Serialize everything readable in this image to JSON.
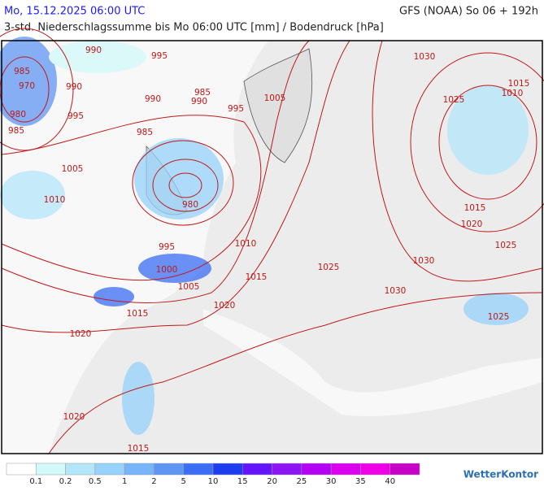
{
  "header": {
    "left": "Mo, 15.12.2025 06:00 UTC",
    "right": "GFS (NOAA) So 06 + 192h",
    "subtitle": "3-std. Niederschlagssumme bis Mo 06:00 UTC [mm] / Bodendruck [hPa]"
  },
  "isobar_labels": [
    990,
    995,
    985,
    970,
    990,
    990,
    990,
    985,
    980,
    985,
    995,
    995,
    1005,
    985,
    1005,
    1010,
    980,
    995,
    1010,
    1000,
    1005,
    1015,
    1025,
    1030,
    1030,
    1015,
    1020,
    1020,
    1025,
    1020,
    1015,
    1030,
    1025,
    1010,
    1015,
    1015,
    1020,
    1025
  ],
  "legend": {
    "colors": [
      "#ffffff",
      "#d2fafa",
      "#b4e6fa",
      "#96d2fa",
      "#78b4fa",
      "#5f96f5",
      "#3c6ef5",
      "#1e3cf0",
      "#6414ff",
      "#8c14f5",
      "#b400f5",
      "#dc00f0",
      "#f000e6",
      "#c800c8"
    ],
    "labels": [
      0.1,
      0.2,
      0.5,
      1,
      2,
      5,
      10,
      15,
      20,
      25,
      30,
      35,
      40
    ]
  },
  "logo": "WetterKontor"
}
